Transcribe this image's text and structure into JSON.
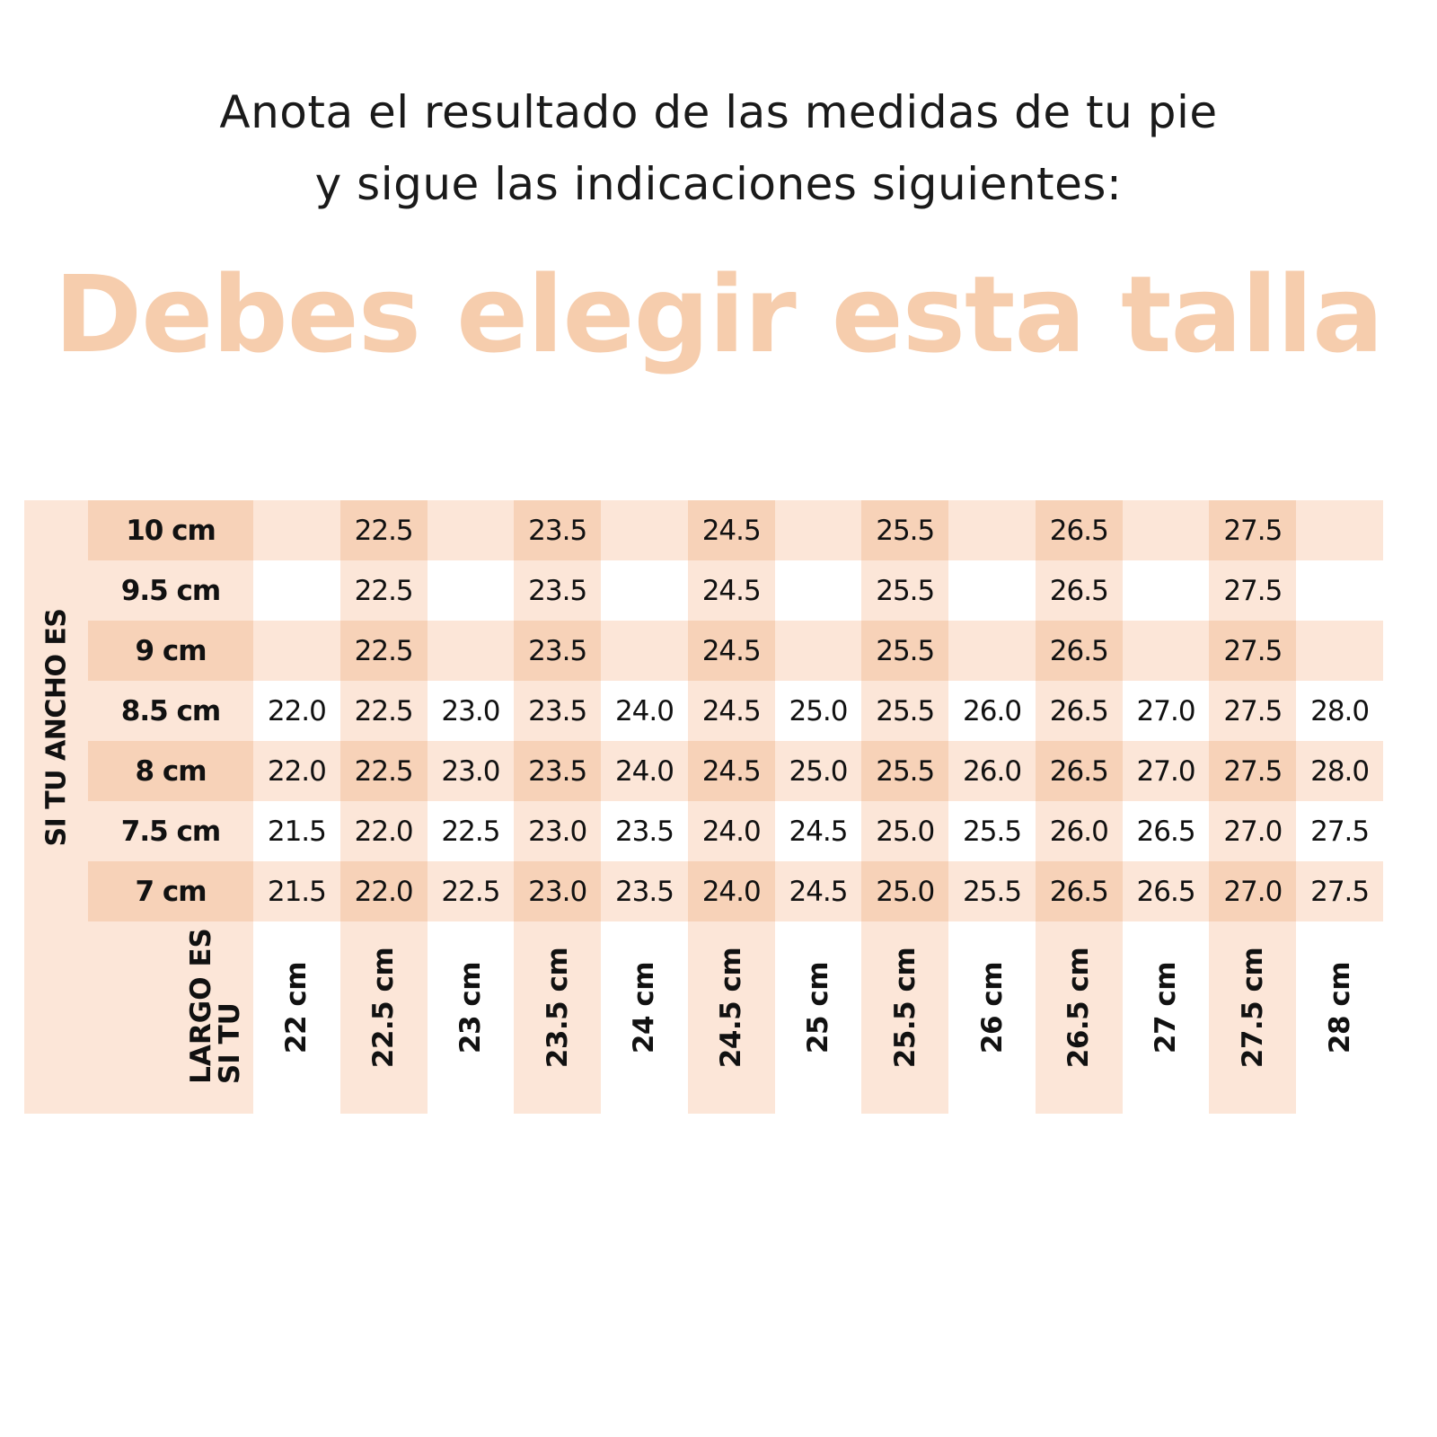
{
  "header": {
    "subtitle_line1": "Anota el resultado de las medidas de tu pie",
    "subtitle_line2": "y sigue las indicaciones siguientes:",
    "title": "Debes elegir esta talla"
  },
  "colors": {
    "title": "#f6cdad",
    "light_shade": "#fce6d8",
    "dark_shade": "#f7d2b8"
  },
  "table": {
    "width_axis_label": "SI TU ANCHO ES",
    "length_axis_label_line1": "SI TU",
    "length_axis_label_line2": "LARGO ES",
    "lengths": [
      "22 cm",
      "22.5 cm",
      "23 cm",
      "23.5 cm",
      "24 cm",
      "24.5 cm",
      "25 cm",
      "25.5 cm",
      "26 cm",
      "26.5 cm",
      "27 cm",
      "27.5 cm",
      "28 cm"
    ],
    "rows": [
      {
        "width": "10 cm",
        "sizes": [
          "",
          "22.5",
          "",
          "23.5",
          "",
          "24.5",
          "",
          "25.5",
          "",
          "26.5",
          "",
          "27.5",
          ""
        ]
      },
      {
        "width": "9.5 cm",
        "sizes": [
          "",
          "22.5",
          "",
          "23.5",
          "",
          "24.5",
          "",
          "25.5",
          "",
          "26.5",
          "",
          "27.5",
          ""
        ]
      },
      {
        "width": "9 cm",
        "sizes": [
          "",
          "22.5",
          "",
          "23.5",
          "",
          "24.5",
          "",
          "25.5",
          "",
          "26.5",
          "",
          "27.5",
          ""
        ]
      },
      {
        "width": "8.5 cm",
        "sizes": [
          "22.0",
          "22.5",
          "23.0",
          "23.5",
          "24.0",
          "24.5",
          "25.0",
          "25.5",
          "26.0",
          "26.5",
          "27.0",
          "27.5",
          "28.0"
        ]
      },
      {
        "width": "8 cm",
        "sizes": [
          "22.0",
          "22.5",
          "23.0",
          "23.5",
          "24.0",
          "24.5",
          "25.0",
          "25.5",
          "26.0",
          "26.5",
          "27.0",
          "27.5",
          "28.0"
        ]
      },
      {
        "width": "7.5 cm",
        "sizes": [
          "21.5",
          "22.0",
          "22.5",
          "23.0",
          "23.5",
          "24.0",
          "24.5",
          "25.0",
          "25.5",
          "26.0",
          "26.5",
          "27.0",
          "27.5"
        ]
      },
      {
        "width": "7 cm",
        "sizes": [
          "21.5",
          "22.0",
          "22.5",
          "23.0",
          "23.5",
          "24.0",
          "24.5",
          "25.0",
          "25.5",
          "26.5",
          "26.5",
          "27.0",
          "27.5"
        ]
      }
    ]
  }
}
